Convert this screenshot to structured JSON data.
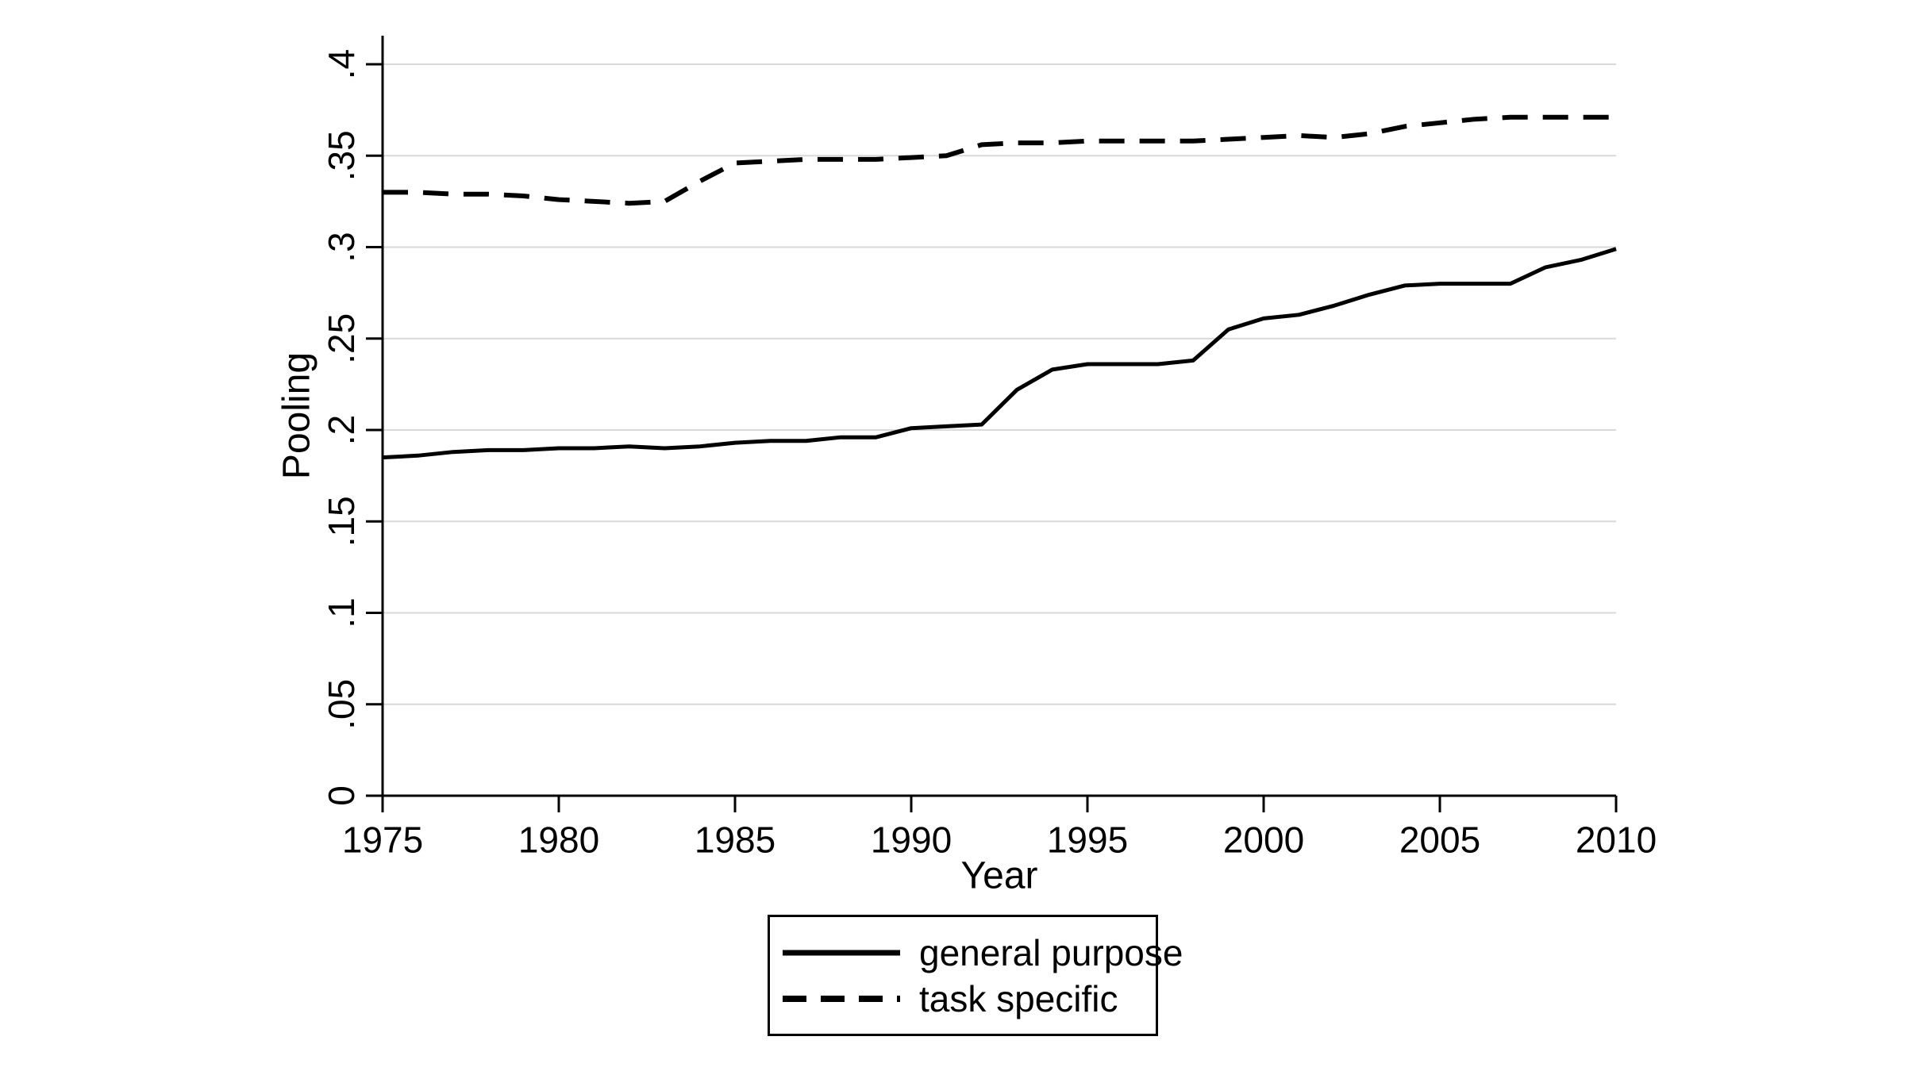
{
  "chart_data": {
    "type": "line",
    "title": "",
    "xlabel": "Year",
    "ylabel": "Pooling",
    "xlim": [
      1975,
      2010
    ],
    "ylim": [
      0,
      0.4
    ],
    "grid": "horizontal",
    "legend_position": "bottom-center",
    "x_tick_labels": [
      "1975",
      "1980",
      "1985",
      "1990",
      "1995",
      "2000",
      "2005",
      "2010"
    ],
    "x_tick_values": [
      1975,
      1980,
      1985,
      1990,
      1995,
      2000,
      2005,
      2010
    ],
    "y_tick_labels": [
      "0",
      ".05",
      ".1",
      ".15",
      ".2",
      ".25",
      ".3",
      ".35",
      ".4"
    ],
    "y_tick_values": [
      0,
      0.05,
      0.1,
      0.15,
      0.2,
      0.25,
      0.3,
      0.35,
      0.4
    ],
    "x": [
      1975,
      1976,
      1977,
      1978,
      1979,
      1980,
      1981,
      1982,
      1983,
      1984,
      1985,
      1986,
      1987,
      1988,
      1989,
      1990,
      1991,
      1992,
      1993,
      1994,
      1995,
      1996,
      1997,
      1998,
      1999,
      2000,
      2001,
      2002,
      2003,
      2004,
      2005,
      2006,
      2007,
      2008,
      2009,
      2010
    ],
    "series": [
      {
        "name": "general purpose",
        "style": "solid",
        "values": [
          0.185,
          0.186,
          0.188,
          0.189,
          0.189,
          0.19,
          0.19,
          0.191,
          0.19,
          0.191,
          0.193,
          0.194,
          0.194,
          0.196,
          0.196,
          0.201,
          0.202,
          0.203,
          0.222,
          0.233,
          0.236,
          0.236,
          0.236,
          0.238,
          0.255,
          0.261,
          0.263,
          0.268,
          0.274,
          0.279,
          0.28,
          0.28,
          0.28,
          0.289,
          0.293,
          0.299
        ]
      },
      {
        "name": "task specific",
        "style": "dashed",
        "values": [
          0.33,
          0.33,
          0.329,
          0.329,
          0.328,
          0.326,
          0.325,
          0.324,
          0.325,
          0.336,
          0.346,
          0.347,
          0.348,
          0.348,
          0.348,
          0.349,
          0.35,
          0.356,
          0.357,
          0.357,
          0.358,
          0.358,
          0.358,
          0.358,
          0.359,
          0.36,
          0.361,
          0.36,
          0.362,
          0.366,
          0.368,
          0.37,
          0.371,
          0.371,
          0.371,
          0.371
        ]
      }
    ],
    "colors": {
      "line": "#000000",
      "gridline": "#d9d9d9",
      "axis": "#000000",
      "background": "#ffffff"
    }
  }
}
